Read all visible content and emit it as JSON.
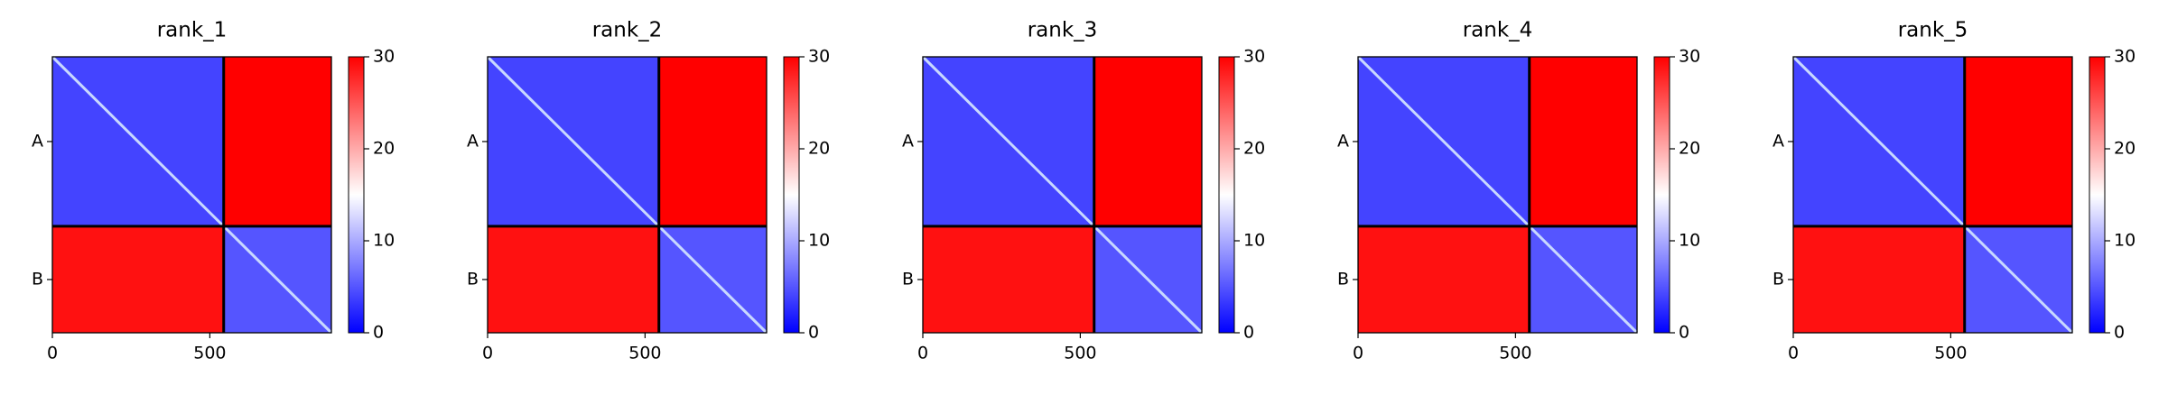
{
  "chart_data": [
    {
      "type": "heatmap",
      "title": "rank_1",
      "xlim": [
        0,
        886
      ],
      "ylim": [
        886,
        0
      ],
      "xticks": [
        0,
        500
      ],
      "yticks": [
        {
          "value": 272,
          "label": "A"
        },
        {
          "value": 715,
          "label": "B"
        }
      ],
      "chain_boundaries": [
        544
      ],
      "values": [
        [
          4,
          30
        ],
        [
          29,
          5
        ]
      ],
      "clim": [
        0,
        30
      ],
      "cticks": [
        0,
        10,
        20,
        30
      ],
      "colormap": [
        "#0000ff",
        "#ffffff",
        "#ff0000"
      ]
    },
    {
      "type": "heatmap",
      "title": "rank_2",
      "xlim": [
        0,
        886
      ],
      "ylim": [
        886,
        0
      ],
      "xticks": [
        0,
        500
      ],
      "yticks": [
        {
          "value": 272,
          "label": "A"
        },
        {
          "value": 715,
          "label": "B"
        }
      ],
      "chain_boundaries": [
        544
      ],
      "values": [
        [
          4,
          30
        ],
        [
          29,
          5
        ]
      ],
      "clim": [
        0,
        30
      ],
      "cticks": [
        0,
        10,
        20,
        30
      ],
      "colormap": [
        "#0000ff",
        "#ffffff",
        "#ff0000"
      ]
    },
    {
      "type": "heatmap",
      "title": "rank_3",
      "xlim": [
        0,
        886
      ],
      "ylim": [
        886,
        0
      ],
      "xticks": [
        0,
        500
      ],
      "yticks": [
        {
          "value": 272,
          "label": "A"
        },
        {
          "value": 715,
          "label": "B"
        }
      ],
      "chain_boundaries": [
        544
      ],
      "values": [
        [
          4,
          30
        ],
        [
          29,
          5
        ]
      ],
      "clim": [
        0,
        30
      ],
      "cticks": [
        0,
        10,
        20,
        30
      ],
      "colormap": [
        "#0000ff",
        "#ffffff",
        "#ff0000"
      ]
    },
    {
      "type": "heatmap",
      "title": "rank_4",
      "xlim": [
        0,
        886
      ],
      "ylim": [
        886,
        0
      ],
      "xticks": [
        0,
        500
      ],
      "yticks": [
        {
          "value": 272,
          "label": "A"
        },
        {
          "value": 715,
          "label": "B"
        }
      ],
      "chain_boundaries": [
        544
      ],
      "values": [
        [
          4,
          30
        ],
        [
          29,
          5
        ]
      ],
      "clim": [
        0,
        30
      ],
      "cticks": [
        0,
        10,
        20,
        30
      ],
      "colormap": [
        "#0000ff",
        "#ffffff",
        "#ff0000"
      ]
    },
    {
      "type": "heatmap",
      "title": "rank_5",
      "xlim": [
        0,
        886
      ],
      "ylim": [
        886,
        0
      ],
      "xticks": [
        0,
        500
      ],
      "yticks": [
        {
          "value": 272,
          "label": "A"
        },
        {
          "value": 715,
          "label": "B"
        }
      ],
      "chain_boundaries": [
        544
      ],
      "values": [
        [
          4,
          30
        ],
        [
          29,
          5
        ]
      ],
      "clim": [
        0,
        30
      ],
      "cticks": [
        0,
        10,
        20,
        30
      ],
      "colormap": [
        "#0000ff",
        "#ffffff",
        "#ff0000"
      ]
    }
  ]
}
